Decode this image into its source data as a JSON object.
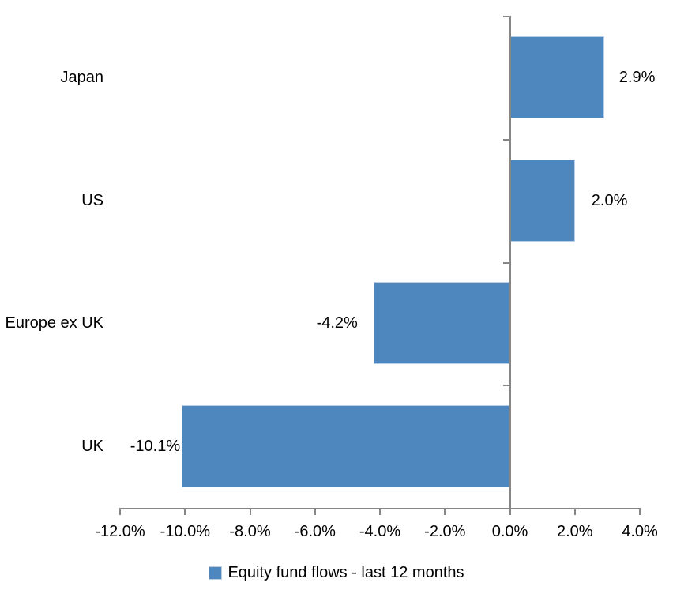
{
  "chart_data": {
    "type": "bar",
    "orientation": "horizontal",
    "title": "",
    "categories": [
      "Japan",
      "US",
      "Europe ex UK",
      "UK"
    ],
    "values": [
      2.9,
      2.0,
      -4.2,
      -10.1
    ],
    "value_labels": [
      "2.9%",
      "2.0%",
      "-4.2%",
      "-10.1%"
    ],
    "series": [
      {
        "name": "Equity fund flows - last 12 months",
        "values": [
          2.9,
          2.0,
          -4.2,
          -10.1
        ]
      }
    ],
    "series_name": "Equity fund flows - last 12 months",
    "xlabel": "",
    "ylabel": "",
    "xlim": [
      -12,
      4
    ],
    "x_ticks": [
      -12,
      -10,
      -8,
      -6,
      -4,
      -2,
      0,
      2,
      4
    ],
    "x_tick_labels": [
      "-12.0%",
      "-10.0%",
      "-8.0%",
      "-6.0%",
      "-4.0%",
      "-2.0%",
      "0.0%",
      "2.0%",
      "4.0%"
    ],
    "grid": false,
    "legend_position": "bottom",
    "colors": {
      "bar_fill": "#4E86BE",
      "bar_border": "#BACFE6",
      "axis": "#868686",
      "text": "#000000",
      "background": "#FFFFFF"
    }
  },
  "legend": {
    "label": "Equity fund flows - last 12 months"
  }
}
